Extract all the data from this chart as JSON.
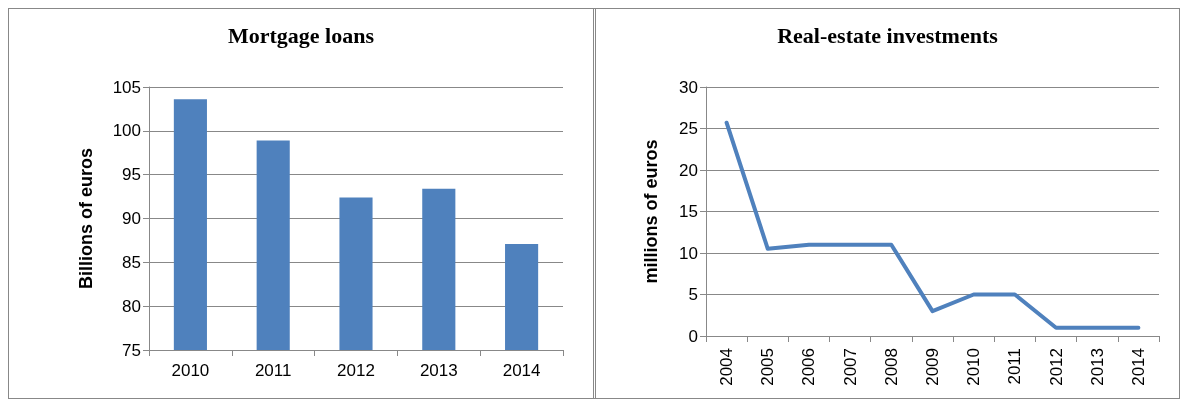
{
  "chart_data": [
    {
      "type": "bar",
      "title": "Mortgage loans",
      "ylabel": "Billions of euros",
      "categories": [
        "2010",
        "2011",
        "2012",
        "2013",
        "2014"
      ],
      "values": [
        103.6,
        98.9,
        92.4,
        93.4,
        87.1
      ],
      "color": "#4f81bd",
      "ylim": [
        75,
        105
      ],
      "yticks": [
        75,
        80,
        85,
        90,
        95,
        100,
        105
      ],
      "grid": "y"
    },
    {
      "type": "line",
      "title": "Real-estate investments",
      "ylabel": "millions of euros",
      "categories": [
        "2004",
        "2005",
        "2006",
        "2007",
        "2008",
        "2009",
        "2010",
        "2011",
        "2012",
        "2013",
        "2014"
      ],
      "values": [
        25.7,
        10.5,
        11,
        11,
        11,
        3,
        5,
        5,
        1,
        1,
        1
      ],
      "color": "#4f81bd",
      "ylim": [
        0,
        30
      ],
      "yticks": [
        0,
        5,
        10,
        15,
        20,
        25,
        30
      ],
      "grid": "y",
      "marker": "none",
      "line_style": "solid"
    }
  ]
}
